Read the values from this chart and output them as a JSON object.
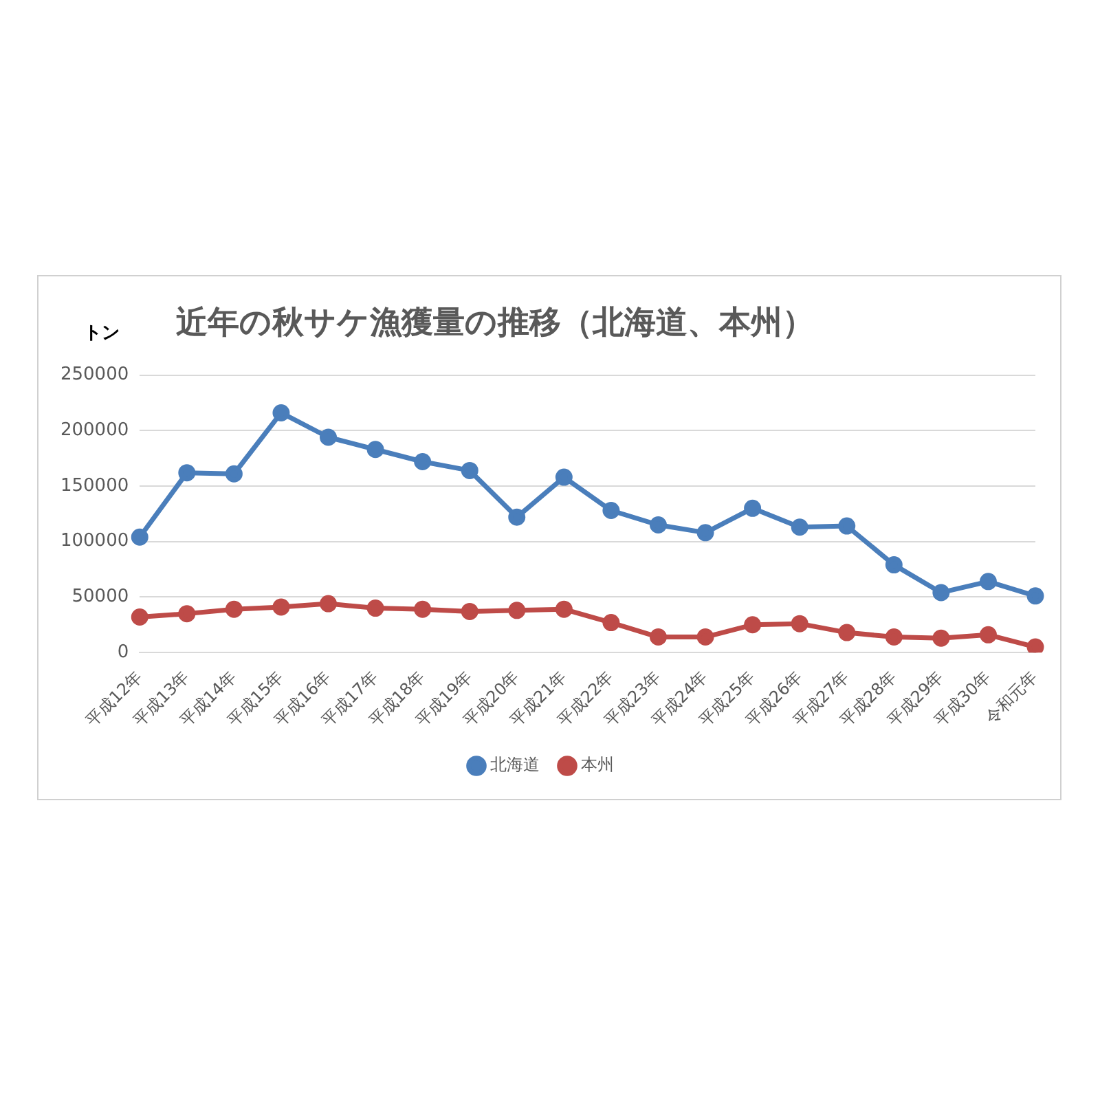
{
  "chart_data": {
    "type": "line",
    "title": "近年の秋サケ漁獲量の推移（北海道、本州）",
    "ylabel": "トン",
    "categories": [
      "平成12年",
      "平成13年",
      "平成14年",
      "平成15年",
      "平成16年",
      "平成17年",
      "平成18年",
      "平成19年",
      "平成20年",
      "平成21年",
      "平成22年",
      "平成23年",
      "平成24年",
      "平成25年",
      "平成26年",
      "平成27年",
      "平成28年",
      "平成29年",
      "平成30年",
      "令和元年"
    ],
    "series": [
      {
        "name": "北海道",
        "color": "#4a7ebb",
        "values": [
          104000,
          162000,
          161000,
          216000,
          194000,
          183000,
          172000,
          164000,
          122000,
          158000,
          128000,
          115000,
          108000,
          130000,
          113000,
          114000,
          79000,
          54000,
          64000,
          51000
        ]
      },
      {
        "name": "本州",
        "color": "#be4b48",
        "values": [
          32000,
          35000,
          39000,
          41000,
          44000,
          40000,
          39000,
          37000,
          38000,
          39000,
          27000,
          14000,
          14000,
          25000,
          26000,
          18000,
          14000,
          13000,
          16000,
          5000
        ]
      }
    ],
    "ylim": [
      0,
      250000
    ],
    "yticks": [
      0,
      50000,
      100000,
      150000,
      200000,
      250000
    ],
    "grid": "y",
    "legend": "bottom",
    "marker": "circle",
    "line_style": "solid"
  }
}
